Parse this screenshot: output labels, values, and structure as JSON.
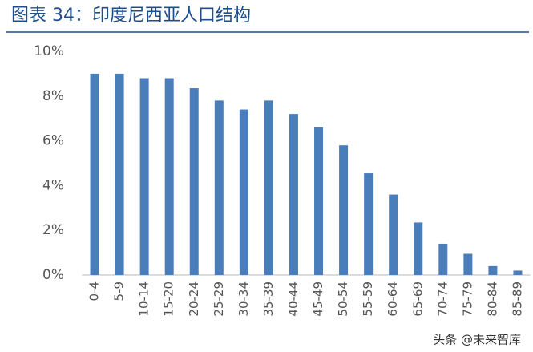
{
  "chart_data": {
    "type": "bar",
    "title": "图表 34：印度尼西亚人口结构",
    "categories": [
      "0-4",
      "5-9",
      "10-14",
      "15-20",
      "20-24",
      "25-29",
      "30-34",
      "35-39",
      "40-44",
      "45-49",
      "50-54",
      "55-59",
      "60-64",
      "65-69",
      "70-74",
      "75-79",
      "80-84",
      "85-89"
    ],
    "values": [
      9.0,
      9.0,
      8.8,
      8.8,
      8.35,
      7.8,
      7.4,
      7.8,
      7.2,
      6.6,
      5.8,
      4.55,
      3.6,
      2.35,
      1.4,
      0.95,
      0.4,
      0.2
    ],
    "color": "#4a7ebb",
    "ylim": [
      0,
      10
    ],
    "yticks": [
      {
        "value": 0,
        "label": "0%"
      },
      {
        "value": 2,
        "label": "2%"
      },
      {
        "value": 4,
        "label": "4%"
      },
      {
        "value": 6,
        "label": "6%"
      },
      {
        "value": 8,
        "label": "8%"
      },
      {
        "value": 10,
        "label": "10%"
      }
    ],
    "grid": false,
    "watermark": "头条 @未来智库"
  }
}
